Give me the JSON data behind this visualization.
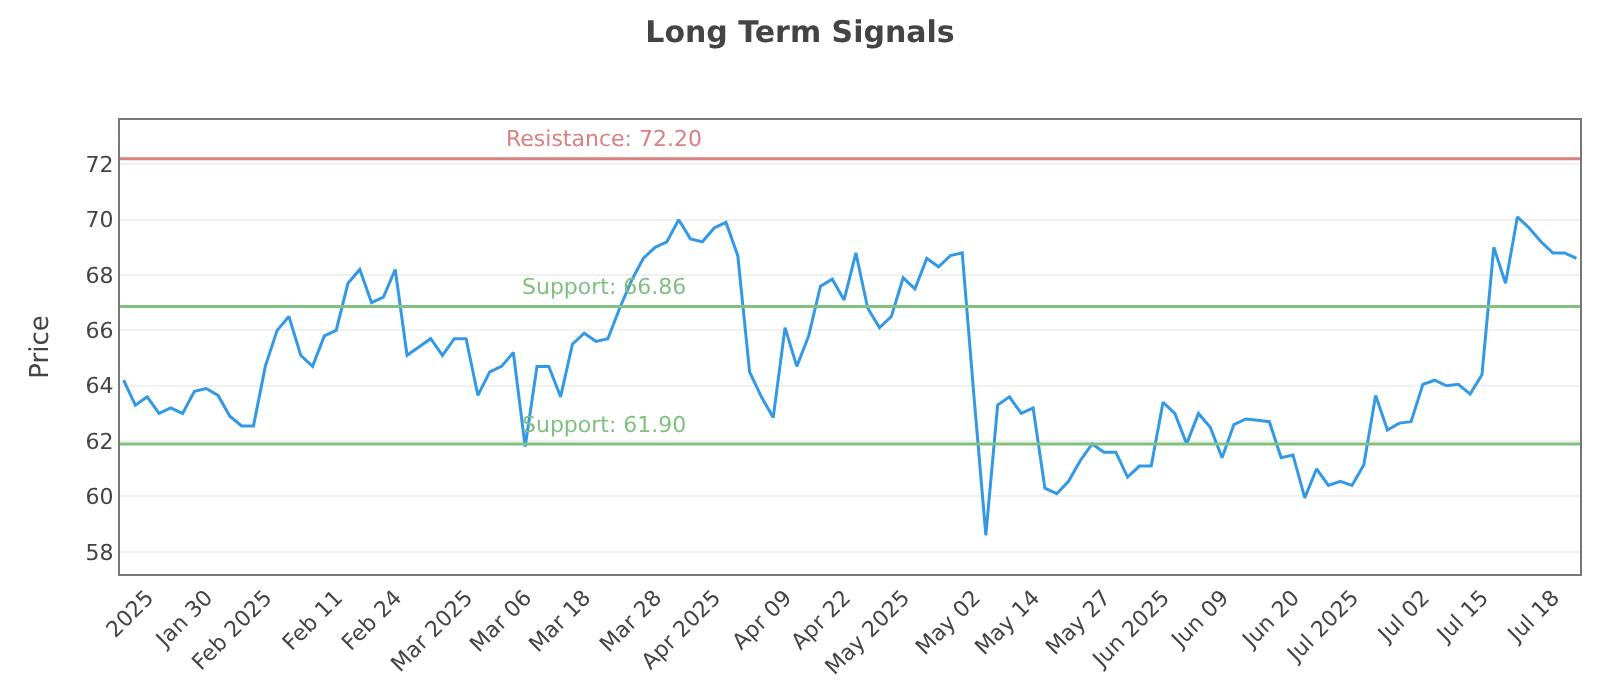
{
  "chart_data": {
    "type": "line",
    "title": "Long Term Signals",
    "ylabel": "Price",
    "categories": [
      null,
      null,
      "2025",
      null,
      null,
      null,
      null,
      "Jan 30",
      null,
      null,
      null,
      null,
      "Feb 2025",
      null,
      null,
      null,
      null,
      null,
      "Feb 11",
      null,
      null,
      null,
      null,
      "Feb 24",
      null,
      null,
      null,
      null,
      null,
      "Mar 2025",
      null,
      null,
      null,
      null,
      "Mar 06",
      null,
      null,
      null,
      null,
      "Mar 18",
      null,
      null,
      null,
      null,
      null,
      "Mar 28",
      null,
      null,
      null,
      null,
      "Apr 2025",
      null,
      null,
      null,
      null,
      null,
      "Apr 09",
      null,
      null,
      null,
      null,
      "Apr 22",
      null,
      null,
      null,
      null,
      "May 2025",
      null,
      null,
      null,
      null,
      null,
      "May 02",
      null,
      null,
      null,
      null,
      "May 14",
      null,
      null,
      null,
      null,
      null,
      "May 27",
      null,
      null,
      null,
      null,
      "Jun 2025",
      null,
      null,
      null,
      null,
      "Jun 09",
      null,
      null,
      null,
      null,
      null,
      "Jun 20",
      null,
      null,
      null,
      null,
      "Jul 2025",
      null,
      null,
      null,
      null,
      null,
      "Jul 02",
      null,
      null,
      null,
      null,
      "Jul 15",
      null,
      null,
      null,
      null,
      null,
      "Jul 18",
      null,
      null
    ],
    "series": [
      {
        "color": "#3399e6",
        "values": [
          64.2,
          63.3,
          63.6,
          63.0,
          63.2,
          63.0,
          63.8,
          63.9,
          63.65,
          62.9,
          62.55,
          62.55,
          64.7,
          66.0,
          66.5,
          65.1,
          64.7,
          65.8,
          66.0,
          67.7,
          68.2,
          67.0,
          67.2,
          68.2,
          65.1,
          65.4,
          65.7,
          65.1,
          65.7,
          65.7,
          63.65,
          64.5,
          64.7,
          65.2,
          61.8,
          64.7,
          64.7,
          63.6,
          65.5,
          65.9,
          65.6,
          65.7,
          66.8,
          67.8,
          68.6,
          69.0,
          69.2,
          70.0,
          69.3,
          69.2,
          69.7,
          69.9,
          68.7,
          64.5,
          63.6,
          62.85,
          66.1,
          64.7,
          65.8,
          67.6,
          67.85,
          67.1,
          68.8,
          66.8,
          66.1,
          66.5,
          67.9,
          67.5,
          68.6,
          68.3,
          68.7,
          68.8,
          63.6,
          58.6,
          63.3,
          63.6,
          63.0,
          63.2,
          60.3,
          60.1,
          60.55,
          61.3,
          61.9,
          61.6,
          61.6,
          60.7,
          61.1,
          61.1,
          63.4,
          63.0,
          61.9,
          63.0,
          62.5,
          61.4,
          62.6,
          62.8,
          62.75,
          62.7,
          61.4,
          61.5,
          59.95,
          61.0,
          60.4,
          60.55,
          60.4,
          61.15,
          63.65,
          62.4,
          62.65,
          62.7,
          64.05,
          64.2,
          64.0,
          64.05,
          63.7,
          64.4,
          69.0,
          67.7,
          70.1,
          69.7,
          69.2,
          68.8,
          68.8,
          68.6
        ]
      }
    ],
    "ylim": [
      57.2,
      73.6
    ],
    "yticks": [
      58,
      60,
      62,
      64,
      66,
      68,
      70,
      72
    ],
    "ref_lines": [
      {
        "axis": "y",
        "value": 72.2,
        "label": "Resistance: 72.20",
        "color": "#d98080"
      },
      {
        "axis": "y",
        "value": 66.86,
        "label": "Support: 66.86",
        "color": "#80c080"
      },
      {
        "axis": "y",
        "value": 61.9,
        "label": "Support: 61.90",
        "color": "#80c080"
      }
    ],
    "grid": "y",
    "marker": "none",
    "line_style": "solid"
  }
}
